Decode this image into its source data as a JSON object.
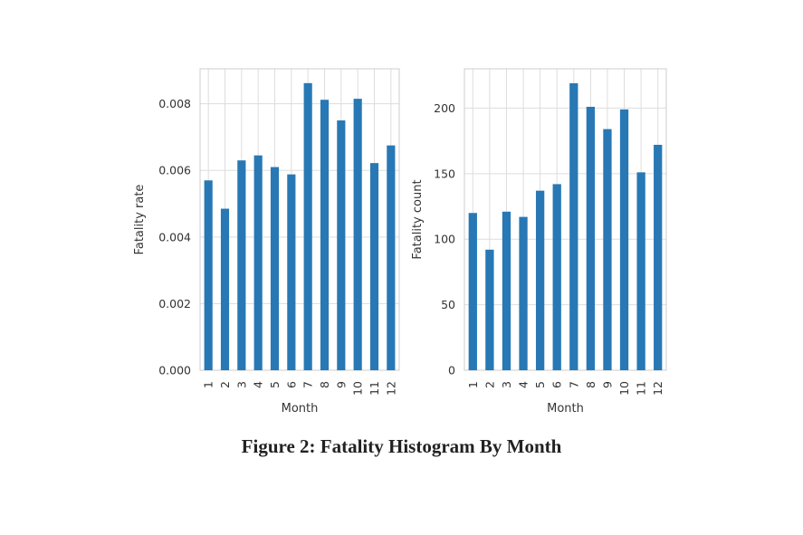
{
  "figure": {
    "caption": "Figure 2: Fatality Histogram By Month"
  },
  "chart_data": [
    {
      "type": "bar",
      "xlabel": "Month",
      "ylabel": "Fatality rate",
      "categories": [
        "1",
        "2",
        "3",
        "4",
        "5",
        "6",
        "7",
        "8",
        "9",
        "10",
        "11",
        "12"
      ],
      "values": [
        0.0057,
        0.00485,
        0.0063,
        0.00645,
        0.0061,
        0.00588,
        0.00862,
        0.00812,
        0.0075,
        0.00815,
        0.00622,
        0.00675
      ],
      "ylim": [
        0,
        0.00905
      ],
      "yticks": [
        0.0,
        0.002,
        0.004,
        0.006,
        0.008
      ],
      "ytick_labels": [
        "0.000",
        "0.002",
        "0.004",
        "0.006",
        "0.008"
      ],
      "grid": true,
      "bar_color": "#2878b5",
      "grid_color": "#dddddd",
      "frame_color": "#cccccc"
    },
    {
      "type": "bar",
      "xlabel": "Month",
      "ylabel": "Fatality count",
      "categories": [
        "1",
        "2",
        "3",
        "4",
        "5",
        "6",
        "7",
        "8",
        "9",
        "10",
        "11",
        "12"
      ],
      "values": [
        120,
        92,
        121,
        117,
        137,
        142,
        219,
        201,
        184,
        199,
        151,
        172
      ],
      "ylim": [
        0,
        230
      ],
      "yticks": [
        0,
        50,
        100,
        150,
        200
      ],
      "ytick_labels": [
        "0",
        "50",
        "100",
        "150",
        "200"
      ],
      "grid": true,
      "bar_color": "#2878b5",
      "grid_color": "#dddddd",
      "frame_color": "#cccccc"
    }
  ]
}
